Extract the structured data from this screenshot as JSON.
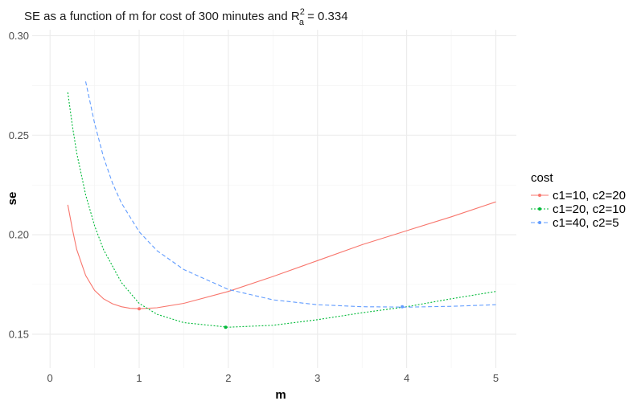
{
  "chart_data": {
    "type": "line",
    "title": "SE as a function of m for cost of 300 minutes and R",
    "title_sup": "2",
    "title_sub": "a",
    "title_suffix": " = 0.334",
    "xlabel": "m",
    "ylabel": "se",
    "xlim": [
      -0.2,
      5.23
    ],
    "ylim": [
      0.133,
      0.303
    ],
    "x_ticks": [
      0,
      1,
      2,
      3,
      4,
      5
    ],
    "x_tick_labels": [
      "0",
      "1",
      "2",
      "3",
      "4",
      "5"
    ],
    "y_ticks": [
      0.15,
      0.2,
      0.25,
      0.3
    ],
    "y_tick_labels": [
      "0.15",
      "0.20",
      "0.25",
      "0.30"
    ],
    "grid": true,
    "legend": {
      "title": "cost",
      "position": "right"
    },
    "series": [
      {
        "name": "c1=10, c2=20",
        "color": "#F8766D",
        "dash": "solid",
        "min_point": {
          "x": 1.0,
          "y": 0.1628
        },
        "x": [
          0.2,
          0.25,
          0.3,
          0.4,
          0.5,
          0.6,
          0.7,
          0.8,
          0.9,
          1.0,
          1.2,
          1.5,
          2.0,
          2.5,
          3.0,
          3.5,
          4.0,
          4.5,
          5.0
        ],
        "y": [
          0.215,
          0.203,
          0.1925,
          0.1795,
          0.172,
          0.1678,
          0.1653,
          0.1638,
          0.163,
          0.1628,
          0.1633,
          0.1655,
          0.1715,
          0.179,
          0.187,
          0.195,
          0.202,
          0.209,
          0.2165
        ]
      },
      {
        "name": "c1=20, c2=10",
        "color": "#00BA38",
        "dash": "dotted",
        "min_point": {
          "x": 1.97,
          "y": 0.1535
        },
        "x": [
          0.2,
          0.25,
          0.3,
          0.4,
          0.5,
          0.6,
          0.8,
          1.0,
          1.2,
          1.5,
          2.0,
          2.5,
          3.0,
          3.5,
          4.0,
          4.5,
          5.0
        ],
        "y": [
          0.2715,
          0.255,
          0.241,
          0.22,
          0.2045,
          0.1925,
          0.176,
          0.1655,
          0.16,
          0.1558,
          0.1535,
          0.1545,
          0.1573,
          0.1608,
          0.1638,
          0.1678,
          0.1715
        ]
      },
      {
        "name": "c1=40, c2=5",
        "color": "#619CFF",
        "dash": "dashed",
        "min_point": {
          "x": 3.95,
          "y": 0.1638
        },
        "x": [
          0.4,
          0.5,
          0.6,
          0.7,
          0.8,
          1.0,
          1.2,
          1.5,
          2.0,
          2.5,
          3.0,
          3.5,
          4.0,
          4.5,
          5.0
        ],
        "y": [
          0.277,
          0.256,
          0.239,
          0.226,
          0.216,
          0.2015,
          0.192,
          0.1825,
          0.1725,
          0.1673,
          0.1648,
          0.1638,
          0.1636,
          0.164,
          0.1648
        ]
      }
    ]
  }
}
